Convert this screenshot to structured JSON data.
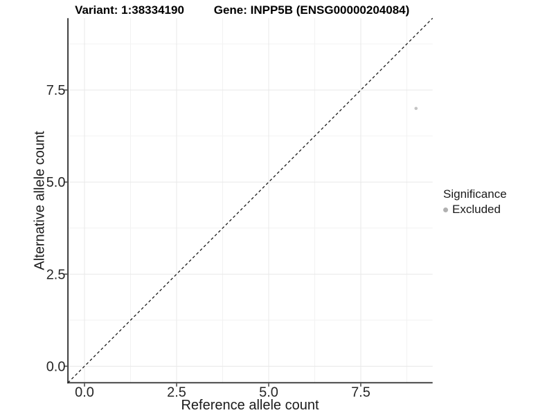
{
  "header": {
    "variant_title": "Variant: 1:38334190",
    "gene_title": "Gene: INPP5B (ENSG00000204084)"
  },
  "colors": {
    "background": "#ffffff",
    "grid_major": "#e8e8e8",
    "grid_minor": "#f2f2f2",
    "axis_line": "#2b2b2b",
    "tick_mark": "#333333",
    "tick_label": "#262626",
    "point": "#c4c4c4",
    "legend_dot": "#b0b0b0",
    "identity_line": "#1a1a1a"
  },
  "chart_data": {
    "type": "scatter",
    "title_left": "Variant: 1:38334190",
    "title_right": "Gene: INPP5B (ENSG00000204084)",
    "xlabel": "Reference allele count",
    "ylabel": "Alternative allele count",
    "xlim": [
      -0.45,
      9.45
    ],
    "ylim": [
      -0.45,
      9.45
    ],
    "x_ticks": [
      0.0,
      2.5,
      5.0,
      7.5
    ],
    "x_tick_labels": [
      "0.0",
      "2.5",
      "5.0",
      "7.5"
    ],
    "y_ticks": [
      0.0,
      2.5,
      5.0,
      7.5
    ],
    "y_tick_labels": [
      "0.0",
      "2.5",
      "5.0",
      "7.5"
    ],
    "minor_ticks": [
      1.25,
      3.75,
      6.25,
      8.75
    ],
    "grid": "major and minor gridlines, both axes",
    "reference_line": {
      "type": "identity y=x",
      "style": "dashed",
      "color": "#1a1a1a"
    },
    "series": [
      {
        "name": "Excluded",
        "color": "#c4c4c4",
        "points": [
          {
            "x": 9,
            "y": 7
          }
        ]
      }
    ],
    "legend": {
      "title": "Significance",
      "position": "right",
      "entries": [
        "Excluded"
      ]
    }
  }
}
